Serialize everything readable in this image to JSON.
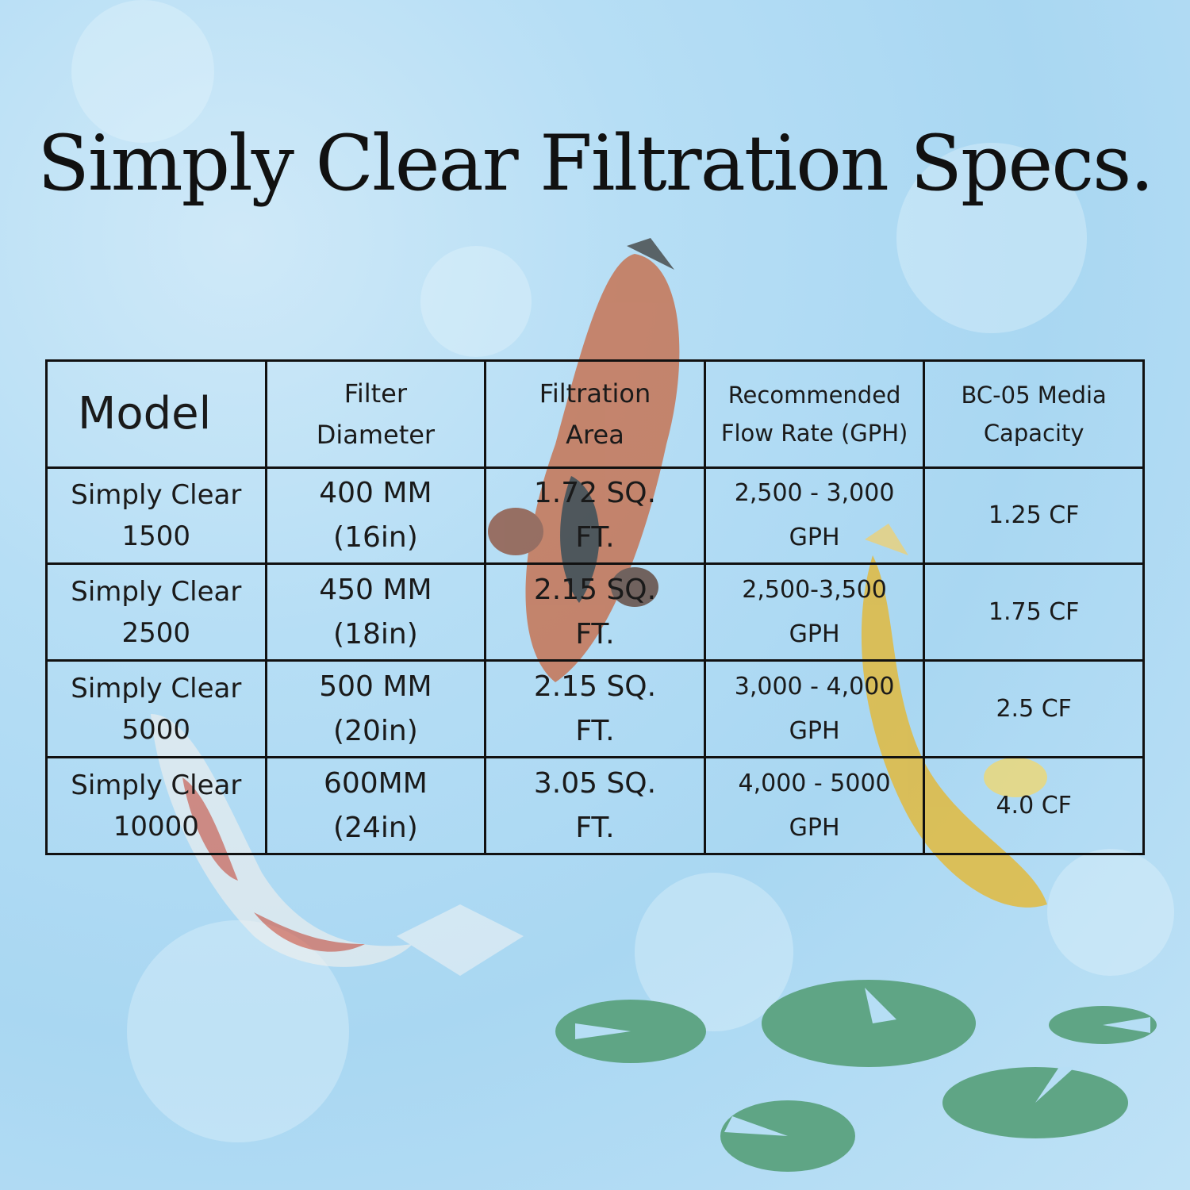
{
  "title": "Simply Clear Filtration Specs.",
  "table": {
    "headers": [
      {
        "line1": "Model",
        "line2": ""
      },
      {
        "line1": "Filter",
        "line2": "Diameter"
      },
      {
        "line1": "Filtration",
        "line2": "Area"
      },
      {
        "line1": "Recommended",
        "line2": "Flow Rate (GPH)"
      },
      {
        "line1": "BC-05 Media",
        "line2": "Capacity"
      }
    ],
    "rows": [
      {
        "model": [
          "Simply Clear",
          "1500"
        ],
        "diameter": [
          "400 MM",
          "(16in)"
        ],
        "area": [
          "1.72 SQ.",
          "FT."
        ],
        "flow": [
          "2,500 - 3,000",
          "GPH"
        ],
        "media": "1.25 CF"
      },
      {
        "model": [
          "Simply Clear",
          "2500"
        ],
        "diameter": [
          "450 MM",
          "(18in)"
        ],
        "area": [
          "2.15 SQ.",
          "FT."
        ],
        "flow": [
          "2,500-3,500",
          "GPH"
        ],
        "media": "1.75 CF"
      },
      {
        "model": [
          "Simply Clear",
          "5000"
        ],
        "diameter": [
          "500 MM",
          "(20in)"
        ],
        "area": [
          "2.15 SQ.",
          "FT."
        ],
        "flow": [
          "3,000 - 4,000",
          "GPH"
        ],
        "media": "2.5 CF"
      },
      {
        "model": [
          "Simply Clear",
          "10000"
        ],
        "diameter": [
          "600MM",
          "(24in)"
        ],
        "area": [
          "3.05 SQ.",
          "FT."
        ],
        "flow": [
          "4,000 - 5000",
          "GPH"
        ],
        "media": "4.0 CF"
      }
    ]
  },
  "colors": {
    "background": "#b6def5",
    "lily_pad": "#5fa585",
    "text": "#111111"
  },
  "decorations": [
    "koi-fish-calico",
    "koi-fish-kohaku",
    "koi-fish-yellow",
    "lily-pads"
  ]
}
